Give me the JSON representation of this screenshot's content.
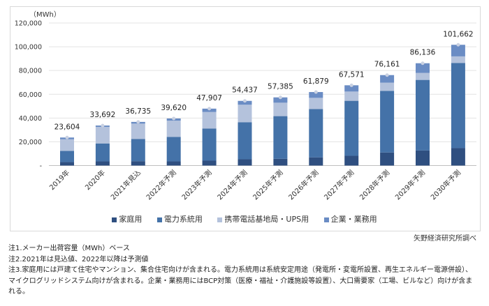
{
  "chart_data": {
    "type": "bar",
    "stacked": true,
    "unit_label": "（MWh）",
    "categories": [
      "2019年",
      "2020年",
      "2021年見込",
      "2022年予測",
      "2023年予測",
      "2024年予測",
      "2025年予測",
      "2026年予測",
      "2027年予測",
      "2028年予測",
      "2029年予測",
      "2030年予測"
    ],
    "series": [
      {
        "name": "家庭用",
        "color": "#2f4f80",
        "values": [
          2900,
          3500,
          3700,
          3500,
          4100,
          5300,
          5700,
          6900,
          8200,
          11000,
          12700,
          14700
        ]
      },
      {
        "name": "電力系統用",
        "color": "#4472a8",
        "values": [
          9400,
          15100,
          18600,
          20600,
          27100,
          31200,
          35900,
          40700,
          46300,
          51900,
          59400,
          71700
        ]
      },
      {
        "name": "携帯電話基地局・UPS用",
        "color": "#b4c2dc",
        "values": [
          9800,
          13900,
          13000,
          13700,
          13900,
          14700,
          11300,
          9400,
          7800,
          6900,
          5900,
          5500
        ]
      },
      {
        "name": "企業・業務用",
        "color": "#6a8cc4",
        "values": [
          1504,
          1192,
          1435,
          1820,
          2807,
          3237,
          4485,
          4879,
          5271,
          6361,
          8136,
          9762
        ]
      }
    ],
    "totals": [
      23604,
      33692,
      36735,
      39620,
      47907,
      54437,
      57385,
      61879,
      67571,
      76161,
      86136,
      101662
    ],
    "total_labels": [
      "23,604",
      "33,692",
      "36,735",
      "39,620",
      "47,907",
      "54,437",
      "57,385",
      "61,879",
      "67,571",
      "76,161",
      "86,136",
      "101,662"
    ],
    "ylim": [
      0,
      120000
    ],
    "yticks": [
      "-",
      "20,000",
      "40,000",
      "60,000",
      "80,000",
      "100,000",
      "120,000"
    ],
    "grid": true,
    "legend": "bottom"
  },
  "source": "矢野経済研究所調べ",
  "notes": [
    "注1.メーカー出荷容量（MWh）ベース",
    "注2.2021年は見込値、2022年以降は予測値",
    "注3.家庭用には戸建て住宅やマンション、集合住宅向けが含まれる。電力系統用は系統安定用途（発電所・変電所設置、再生エネルギー電源併設）、マイクログリッドシステム向けが含まれる。企業・業務用にはBCP対策（医療・福祉・介護施設等設置）、大口需要家（工場、ビルなど）向けが含まれる。"
  ]
}
